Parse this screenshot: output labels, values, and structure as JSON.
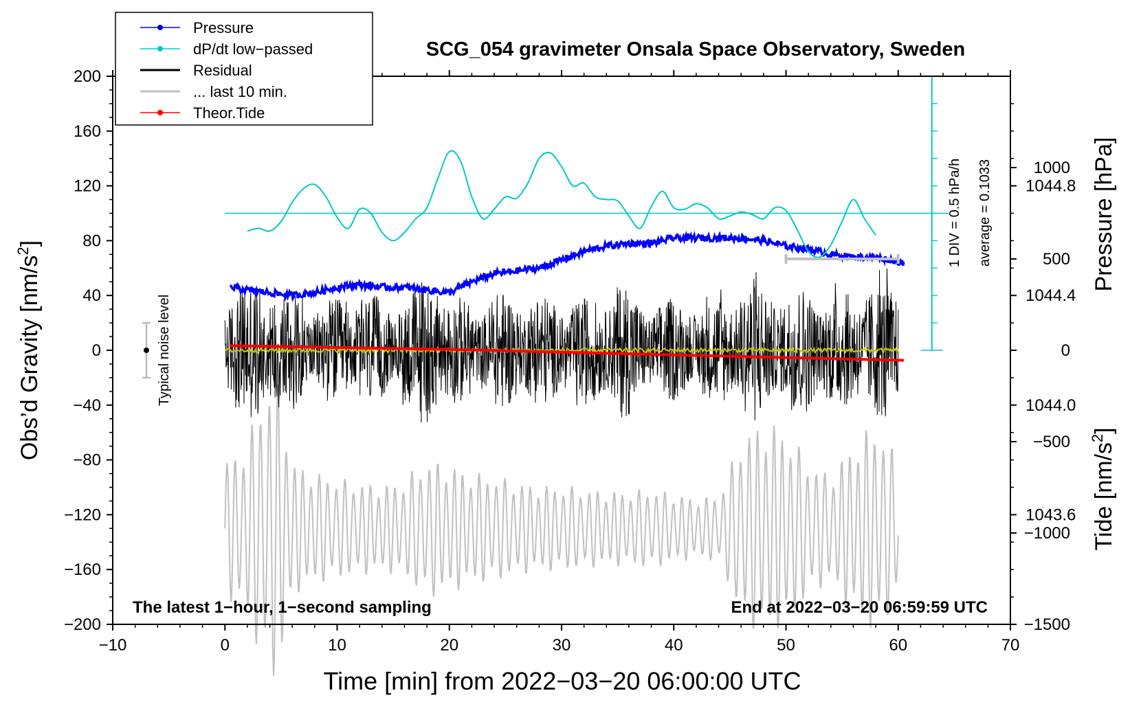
{
  "chart_data": {
    "type": "line",
    "title": "SCG_054 gravimeter Onsala Space Observatory, Sweden",
    "xlabel": "Time [min] from 2022−03−20 06:00:00 UTC",
    "ylabel_prefix": "Obs’d Gravity [nm/s",
    "ylabel_sup": "2",
    "ylabel_suffix": "]",
    "y2label": "Pressure [hPa]",
    "y3label_prefix": "Tide [nm/s",
    "y3label_sup": "2",
    "y3label_suffix": "]",
    "xlim": [
      -10,
      70
    ],
    "ylim": [
      -200,
      200
    ],
    "x_ticks": [
      -10,
      0,
      10,
      20,
      30,
      40,
      50,
      60,
      70
    ],
    "x_tick_labels": [
      "−10",
      "0",
      "10",
      "20",
      "30",
      "40",
      "50",
      "60",
      "70"
    ],
    "y_ticks": [
      -200,
      -160,
      -120,
      -80,
      -40,
      0,
      40,
      80,
      120,
      160,
      200
    ],
    "y_tick_labels": [
      "−200",
      "−160",
      "−120",
      "−80",
      "−40",
      "0",
      "40",
      "80",
      "120",
      "160",
      "200"
    ],
    "pressure_axis": {
      "range_hpa": [
        1043.2,
        1045.2
      ],
      "ticks": [
        1043.6,
        1044.0,
        1044.4,
        1044.8
      ],
      "tick_labels": [
        "1043.6",
        "1044.0",
        "1044.4",
        "1044.8"
      ]
    },
    "tide_axis": {
      "range": [
        -1500,
        1500
      ],
      "ticks": [
        -1500,
        -1000,
        -500,
        0,
        500,
        1000
      ],
      "tick_labels": [
        "−1500",
        "−1000",
        "−500",
        "0",
        "500",
        "1000"
      ]
    },
    "legend": [
      {
        "label": "Pressure",
        "color": "#0000ff",
        "marker": true
      },
      {
        "label": "dP/dt low−passed",
        "color": "#00c8c8",
        "marker": true
      },
      {
        "label": "Residual",
        "color": "#000000",
        "marker": false
      },
      {
        "label": "... last 10 min.",
        "color": "#c0c0c0",
        "marker": false
      },
      {
        "label": "Theor.Tide",
        "color": "#ff0000",
        "marker": true
      }
    ],
    "dpdt_scale_label": "1 DIV = 0.5 hPa/h",
    "dpdt_average_label": "average = 0.1033",
    "dpdt_zero_line_gravity": 100,
    "noise_label": "Typical noise level",
    "noise_bar": {
      "x": -7,
      "center": 0,
      "half_range": 20
    },
    "last10_bar": {
      "x_start": 50,
      "x_end": 60
    },
    "note_left": "The latest 1−hour, 1−second sampling",
    "note_right": "End at 2022−03−20 06:59:59 UTC",
    "series": [
      {
        "name": "Pressure",
        "color": "#0000ff",
        "unit": "hPa",
        "x": [
          0.5,
          2,
          4,
          6,
          8,
          10,
          12,
          14,
          16,
          18,
          20,
          22,
          24,
          26,
          28,
          30,
          32,
          34,
          36,
          38,
          40,
          42,
          44,
          46,
          48,
          50,
          52,
          54,
          56,
          58,
          60.5
        ],
        "y": [
          1044.43,
          1044.42,
          1044.41,
          1044.4,
          1044.41,
          1044.43,
          1044.44,
          1044.43,
          1044.43,
          1044.42,
          1044.41,
          1044.45,
          1044.48,
          1044.49,
          1044.5,
          1044.53,
          1044.56,
          1044.58,
          1044.59,
          1044.59,
          1044.61,
          1044.61,
          1044.61,
          1044.61,
          1044.6,
          1044.58,
          1044.57,
          1044.55,
          1044.54,
          1044.54,
          1044.52
        ]
      },
      {
        "name": "dP/dt low-passed",
        "color": "#00c8c8",
        "unit": "gravity-axis",
        "x": [
          2,
          3,
          4,
          5,
          6,
          7,
          8,
          9,
          10,
          11,
          12,
          13,
          14,
          15,
          16,
          17,
          18,
          19,
          20,
          21,
          22,
          23,
          24,
          25,
          26,
          27,
          28,
          29,
          30,
          31,
          32,
          33,
          34,
          35,
          36,
          37,
          38,
          39,
          40,
          41,
          42,
          43,
          44,
          45,
          46,
          47,
          48,
          49,
          50,
          51,
          52,
          53,
          54,
          55,
          56,
          57,
          58
        ],
        "y": [
          87,
          89,
          87,
          94,
          108,
          118,
          121,
          112,
          97,
          89,
          103,
          100,
          86,
          80,
          86,
          96,
          104,
          126,
          145,
          138,
          112,
          96,
          103,
          112,
          111,
          122,
          140,
          144,
          134,
          120,
          122,
          112,
          110,
          109,
          98,
          89,
          105,
          116,
          104,
          103,
          107,
          104,
          96,
          98,
          101,
          99,
          96,
          104,
          102,
          88,
          72,
          68,
          77,
          94,
          110,
          96,
          84
        ]
      },
      {
        "name": "Theor.Tide",
        "color": "#ff0000",
        "unit": "nm/s^2",
        "x": [
          0.5,
          10,
          20,
          30,
          40,
          50,
          60.5
        ],
        "y": [
          25,
          15,
          5,
          -10,
          -25,
          -40,
          -55
        ]
      }
    ]
  }
}
